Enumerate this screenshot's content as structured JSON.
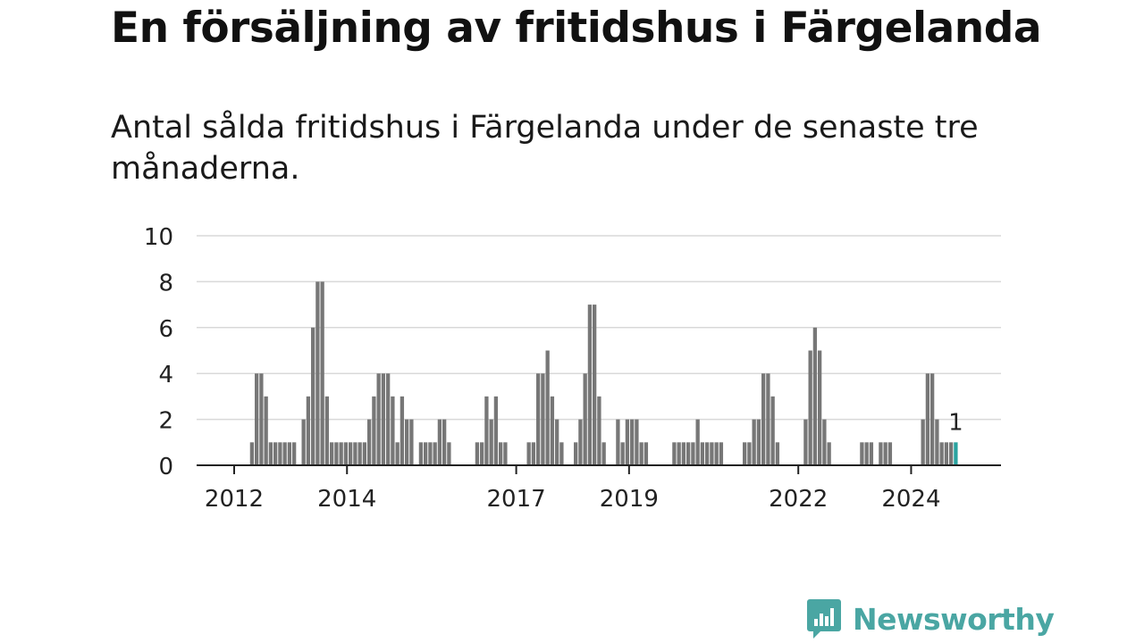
{
  "header": {
    "title": "En försäljning av fritidshus i Färgelanda",
    "subtitle": "Antal sålda fritidshus i Färgelanda under de senaste tre månaderna."
  },
  "brand": {
    "name": "Newsworthy",
    "color": "#4aa6a3",
    "icon": "newsworthy-logo-icon"
  },
  "chart_data": {
    "type": "bar",
    "ylim": [
      0,
      10
    ],
    "yticks": [
      0,
      2,
      4,
      6,
      8,
      10
    ],
    "xticks": [
      "2012",
      "2014",
      "2017",
      "2019",
      "2022",
      "2024"
    ],
    "grid": true,
    "bar_color": "#777777",
    "highlight_color": "#2aa3a0",
    "highlight_label": "1",
    "values": [
      0,
      0,
      0,
      0,
      0,
      0,
      0,
      0,
      0,
      0,
      0,
      1,
      4,
      4,
      3,
      1,
      1,
      1,
      1,
      1,
      1,
      0,
      2,
      3,
      6,
      8,
      8,
      3,
      1,
      1,
      1,
      1,
      1,
      1,
      1,
      1,
      2,
      3,
      4,
      4,
      4,
      3,
      1,
      3,
      2,
      2,
      0,
      1,
      1,
      1,
      1,
      2,
      2,
      1,
      0,
      0,
      0,
      0,
      0,
      1,
      1,
      3,
      2,
      3,
      1,
      1,
      0,
      0,
      0,
      0,
      1,
      1,
      4,
      4,
      5,
      3,
      2,
      1,
      0,
      0,
      1,
      2,
      4,
      7,
      7,
      3,
      1,
      0,
      0,
      2,
      1,
      2,
      2,
      2,
      1,
      1,
      0,
      0,
      0,
      0,
      0,
      1,
      1,
      1,
      1,
      1,
      2,
      1,
      1,
      1,
      1,
      1,
      0,
      0,
      0,
      0,
      1,
      1,
      2,
      2,
      4,
      4,
      3,
      1,
      0,
      0,
      0,
      0,
      0,
      2,
      5,
      6,
      5,
      2,
      1,
      0,
      0,
      0,
      0,
      0,
      0,
      1,
      1,
      1,
      0,
      1,
      1,
      1,
      0,
      0,
      0,
      0,
      0,
      0,
      2,
      4,
      4,
      2,
      1,
      1,
      1,
      1
    ]
  }
}
